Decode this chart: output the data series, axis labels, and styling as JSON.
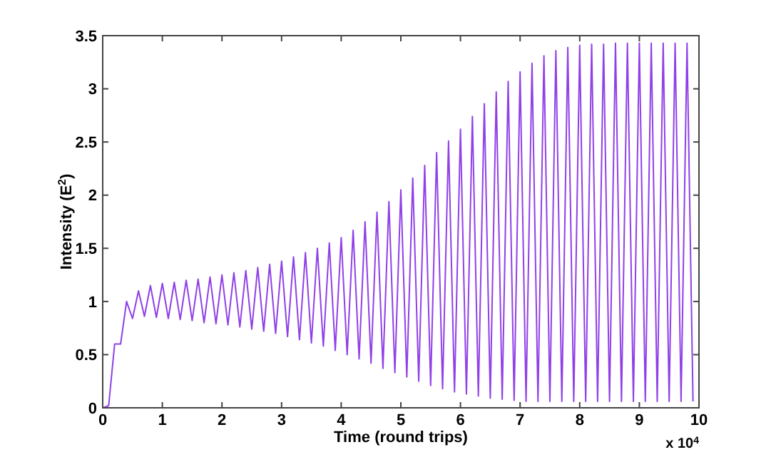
{
  "chart_data": {
    "type": "line",
    "xlabel": "Time (round trips)",
    "ylabel": "Intensity (E$^{2}$)",
    "annotations": [
      "x 10$^{4}$"
    ],
    "xlim": [
      0,
      10
    ],
    "ylim": [
      0,
      3.5
    ],
    "xticks": [
      0,
      1,
      2,
      3,
      4,
      5,
      6,
      7,
      8,
      9,
      10
    ],
    "yticks": [
      0,
      0.5,
      1,
      1.5,
      2,
      2.5,
      3,
      3.5
    ],
    "grid": false,
    "series": [
      {
        "color": "#9040e8",
        "x": [
          0,
          0.1,
          0.2,
          0.3,
          0.4,
          0.5,
          0.6,
          0.7,
          0.8,
          0.9,
          1,
          1.1,
          1.2,
          1.3,
          1.4,
          1.5,
          1.6,
          1.7,
          1.8,
          1.9,
          2,
          2.1,
          2.2,
          2.3,
          2.4,
          2.5,
          2.6,
          2.7,
          2.8,
          2.9,
          3,
          3.1,
          3.2,
          3.3,
          3.4,
          3.5,
          3.6,
          3.7,
          3.8,
          3.9,
          4,
          4.1,
          4.2,
          4.3,
          4.4,
          4.5,
          4.6,
          4.7,
          4.8,
          4.9,
          5,
          5.1,
          5.2,
          5.3,
          5.4,
          5.5,
          5.6,
          5.7,
          5.8,
          5.9,
          6,
          6.1,
          6.2,
          6.3,
          6.4,
          6.5,
          6.6,
          6.7,
          6.8,
          6.9,
          7,
          7.1,
          7.2,
          7.3,
          7.4,
          7.5,
          7.6,
          7.7,
          7.8,
          7.9,
          8,
          8.1,
          8.2,
          8.3,
          8.4,
          8.5,
          8.6,
          8.7,
          8.8,
          8.9,
          9,
          9.1,
          9.2,
          9.3,
          9.4,
          9.5,
          9.6,
          9.7,
          9.8,
          9.9
        ],
        "values": [
          0,
          0.02,
          0.6,
          0.6,
          1.0,
          0.84,
          1.1,
          0.86,
          1.15,
          0.85,
          1.17,
          0.84,
          1.18,
          0.83,
          1.2,
          0.82,
          1.21,
          0.8,
          1.23,
          0.79,
          1.25,
          0.78,
          1.27,
          0.76,
          1.29,
          0.74,
          1.32,
          0.72,
          1.35,
          0.7,
          1.38,
          0.67,
          1.42,
          0.64,
          1.46,
          0.61,
          1.5,
          0.58,
          1.55,
          0.54,
          1.6,
          0.5,
          1.67,
          0.46,
          1.75,
          0.42,
          1.84,
          0.37,
          1.94,
          0.33,
          2.05,
          0.29,
          2.16,
          0.25,
          2.28,
          0.21,
          2.4,
          0.18,
          2.51,
          0.15,
          2.62,
          0.13,
          2.74,
          0.11,
          2.86,
          0.09,
          2.97,
          0.08,
          3.07,
          0.07,
          3.16,
          0.06,
          3.24,
          0.06,
          3.31,
          0.06,
          3.36,
          0.06,
          3.39,
          0.06,
          3.41,
          0.06,
          3.42,
          0.06,
          3.42,
          0.06,
          3.43,
          0.06,
          3.43,
          0.06,
          3.43,
          0.06,
          3.43,
          0.06,
          3.43,
          0.06,
          3.43,
          0.06,
          3.43,
          0.06
        ]
      }
    ]
  }
}
